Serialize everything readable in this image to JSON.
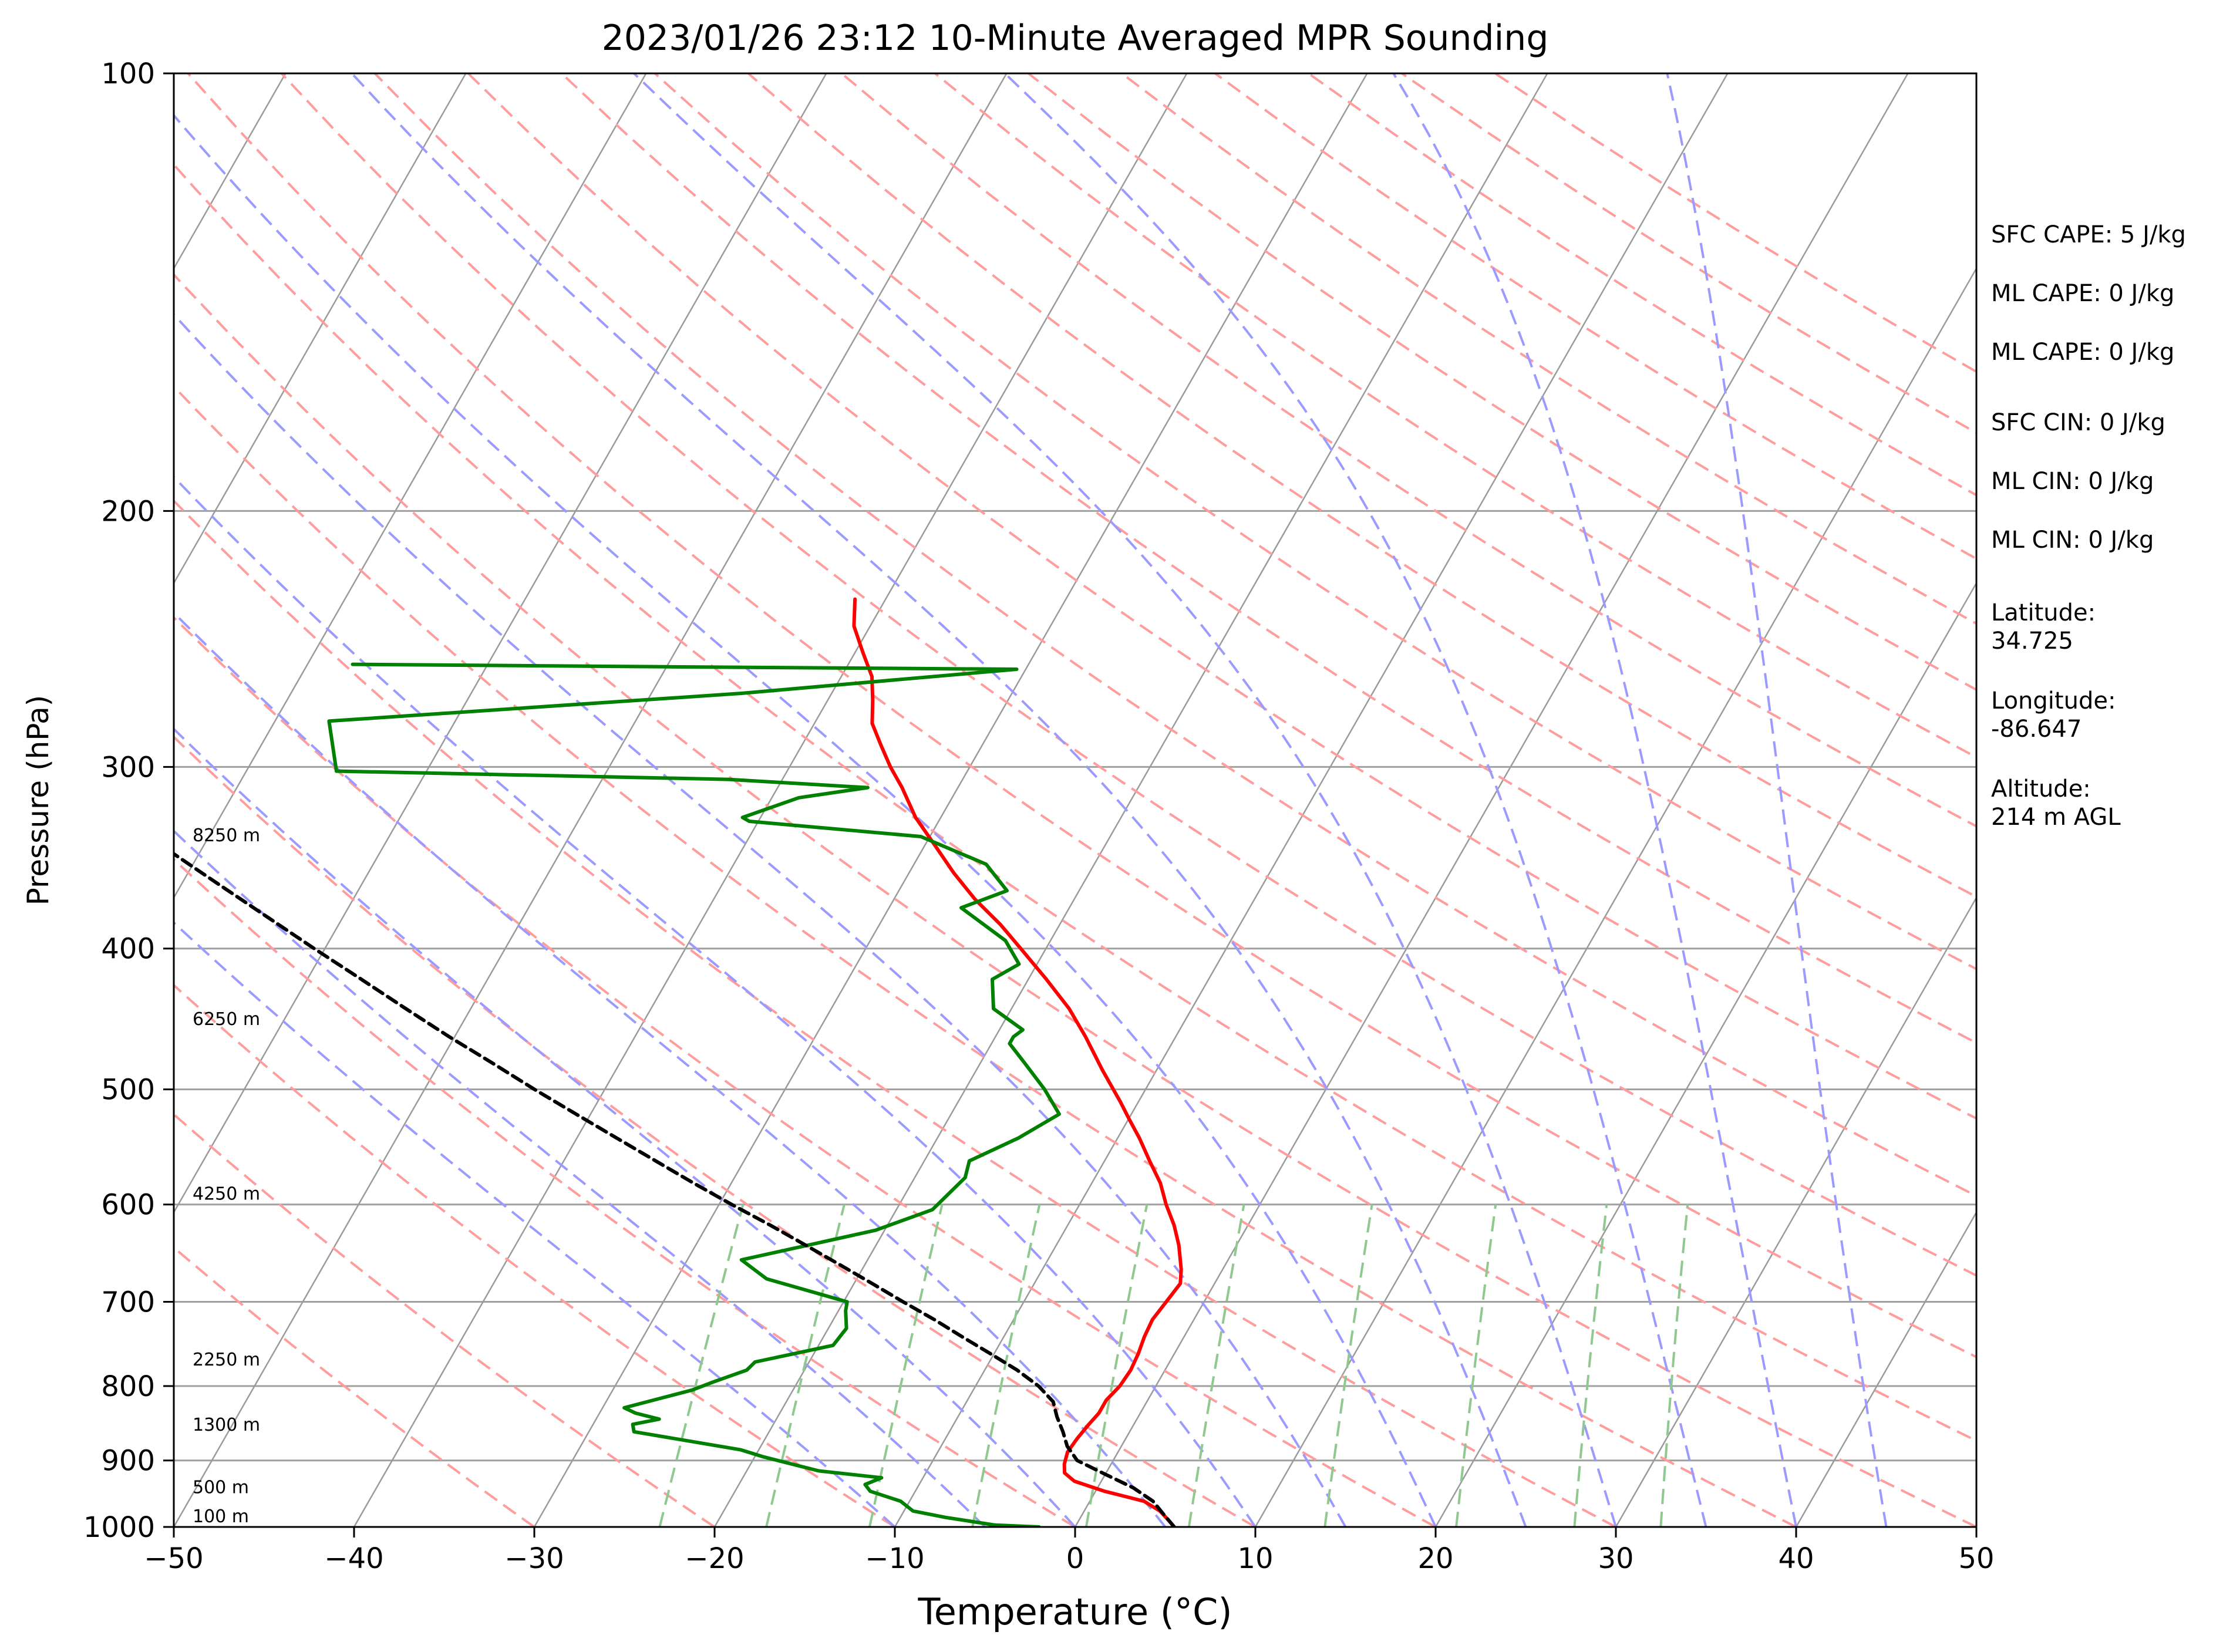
{
  "chart_data": {
    "type": "line",
    "title": "2023/01/26 23:12 10-Minute Averaged MPR Sounding",
    "xlabel": "Temperature (°C)",
    "ylabel": "Pressure (hPa)",
    "xlim": [
      -50,
      50
    ],
    "ylim": [
      1000,
      100
    ],
    "y_scale": "log",
    "skew_t": true,
    "grid": true,
    "x_ticks": [
      "−50",
      "−40",
      "−30",
      "−20",
      "−10",
      "0",
      "10",
      "20",
      "30",
      "40",
      "50"
    ],
    "y_ticks": [
      "100",
      "200",
      "300",
      "400",
      "500",
      "600",
      "700",
      "800",
      "900",
      "1000"
    ],
    "height_labels": [
      {
        "p": 1000,
        "label": "100 m"
      },
      {
        "p": 955,
        "label": "500 m"
      },
      {
        "p": 865,
        "label": "1300 m"
      },
      {
        "p": 780,
        "label": "2250 m"
      },
      {
        "p": 600,
        "label": "4250 m"
      },
      {
        "p": 455,
        "label": "6250 m"
      },
      {
        "p": 340,
        "label": "8250 m"
      }
    ],
    "series": [
      {
        "color": "#ff0000",
        "points": [
          [
            5.5,
            1000
          ],
          [
            5.0,
            990
          ],
          [
            4.2,
            975
          ],
          [
            3.0,
            960
          ],
          [
            0.5,
            945
          ],
          [
            -1.5,
            930
          ],
          [
            -2.3,
            918
          ],
          [
            -2.6,
            905
          ],
          [
            -2.8,
            888
          ],
          [
            -2.7,
            870
          ],
          [
            -2.5,
            850
          ],
          [
            -2.3,
            835
          ],
          [
            -2.3,
            818
          ],
          [
            -2.0,
            800
          ],
          [
            -1.9,
            780
          ],
          [
            -2.0,
            760
          ],
          [
            -2.2,
            740
          ],
          [
            -2.3,
            720
          ],
          [
            -2.1,
            700
          ],
          [
            -1.9,
            680
          ],
          [
            -2.3,
            665
          ],
          [
            -3.2,
            640
          ],
          [
            -4.1,
            620
          ],
          [
            -5.2,
            600
          ],
          [
            -6.2,
            580
          ],
          [
            -7.5,
            560
          ],
          [
            -8.8,
            540
          ],
          [
            -9.9,
            525
          ],
          [
            -11.0,
            510
          ],
          [
            -13.0,
            485
          ],
          [
            -15.0,
            460
          ],
          [
            -16.8,
            440
          ],
          [
            -19.0,
            420
          ],
          [
            -21.4,
            400
          ],
          [
            -23.3,
            385
          ],
          [
            -25.5,
            370
          ],
          [
            -27.5,
            355
          ],
          [
            -29.4,
            340
          ],
          [
            -31.4,
            325
          ],
          [
            -33.1,
            310
          ],
          [
            -34.4,
            300
          ],
          [
            -35.6,
            290
          ],
          [
            -36.8,
            280
          ],
          [
            -37.5,
            270
          ],
          [
            -38.3,
            260
          ],
          [
            -39.6,
            250
          ],
          [
            -40.9,
            240
          ],
          [
            -41.7,
            230
          ]
        ]
      },
      {
        "color": "#008000",
        "points": [
          [
            -2.0,
            1000
          ],
          [
            -4.5,
            997
          ],
          [
            -7.5,
            985
          ],
          [
            -9.5,
            975
          ],
          [
            -10.5,
            960
          ],
          [
            -12.5,
            945
          ],
          [
            -13.0,
            935
          ],
          [
            -12.3,
            925
          ],
          [
            -16.0,
            915
          ],
          [
            -19.5,
            895
          ],
          [
            -21.0,
            885
          ],
          [
            -27.5,
            860
          ],
          [
            -27.8,
            850
          ],
          [
            -26.5,
            843
          ],
          [
            -28.0,
            835
          ],
          [
            -28.8,
            828
          ],
          [
            -27.0,
            815
          ],
          [
            -25.6,
            805
          ],
          [
            -24.7,
            795
          ],
          [
            -23.2,
            780
          ],
          [
            -23.0,
            770
          ],
          [
            -19.2,
            750
          ],
          [
            -19.0,
            730
          ],
          [
            -19.6,
            710
          ],
          [
            -19.8,
            700
          ],
          [
            -25.0,
            675
          ],
          [
            -27.0,
            655
          ],
          [
            -20.5,
            625
          ],
          [
            -18.0,
            605
          ],
          [
            -17.2,
            575
          ],
          [
            -17.5,
            560
          ],
          [
            -15.5,
            540
          ],
          [
            -14.0,
            520
          ],
          [
            -15.6,
            500
          ],
          [
            -17.5,
            480
          ],
          [
            -19.0,
            465
          ],
          [
            -19.0,
            460
          ],
          [
            -18.7,
            455
          ],
          [
            -21.0,
            440
          ],
          [
            -22.0,
            420
          ],
          [
            -21.0,
            410
          ],
          [
            -22.5,
            395
          ],
          [
            -26.0,
            375
          ],
          [
            -24.0,
            365
          ],
          [
            -26.0,
            350
          ],
          [
            -30.5,
            335
          ],
          [
            -40.5,
            327
          ],
          [
            -41.0,
            325
          ],
          [
            -38.5,
            315
          ],
          [
            -35.0,
            310
          ],
          [
            -43.0,
            306
          ],
          [
            -65.0,
            302
          ],
          [
            -67.0,
            279
          ],
          [
            -45.0,
            267
          ],
          [
            -30.5,
            257
          ],
          [
            -50.0,
            256
          ],
          [
            -67.5,
            255
          ]
        ]
      },
      {
        "color": "#000000",
        "dashed": true,
        "points": [
          [
            5.5,
            1000
          ],
          [
            4.5,
            980
          ],
          [
            3.5,
            960
          ],
          [
            2.0,
            940
          ],
          [
            0.0,
            920
          ],
          [
            -2.0,
            900
          ],
          [
            -3.0,
            880
          ],
          [
            -3.7,
            860
          ],
          [
            -4.5,
            840
          ],
          [
            -5.2,
            820
          ],
          [
            -6.5,
            800
          ],
          [
            -8.2,
            780
          ],
          [
            -10.2,
            760
          ],
          [
            -12.3,
            740
          ],
          [
            -14.4,
            720
          ],
          [
            -16.7,
            700
          ],
          [
            -19.0,
            680
          ],
          [
            -21.4,
            660
          ],
          [
            -23.9,
            640
          ],
          [
            -26.5,
            620
          ],
          [
            -29.3,
            600
          ],
          [
            -32.1,
            580
          ],
          [
            -34.9,
            560
          ],
          [
            -37.8,
            540
          ],
          [
            -40.8,
            520
          ],
          [
            -43.9,
            500
          ],
          [
            -47.0,
            480
          ],
          [
            -50.3,
            460
          ],
          [
            -53.6,
            440
          ],
          [
            -57.0,
            420
          ],
          [
            -60.6,
            400
          ],
          [
            -64.3,
            380
          ],
          [
            -68.2,
            360
          ],
          [
            -72.3,
            340
          ],
          [
            -76.6,
            320
          ],
          [
            -81.1,
            300
          ],
          [
            -85.9,
            280
          ],
          [
            -90.8,
            262
          ]
        ]
      }
    ],
    "indices": [
      "SFC CAPE: 5 J/kg",
      "ML CAPE: 0 J/kg",
      "ML CAPE: 0 J/kg",
      "SFC CIN: 0 J/kg",
      "ML CIN: 0 J/kg",
      "ML CIN: 0 J/kg"
    ],
    "location": [
      {
        "label": "Latitude:",
        "value": "34.725"
      },
      {
        "label": "Longitude:",
        "value": "-86.647"
      },
      {
        "label": "Altitude:",
        "value": "214 m AGL"
      }
    ],
    "colors": {
      "isotherm": "#9a9a9a",
      "isobar": "#a0a0a0",
      "dry_adiabat": "#ff9c9c",
      "moist_adiabat": "#9b9bff",
      "mixing_ratio": "#8fc98f",
      "temperature": "#ff0000",
      "dewpoint": "#008000",
      "parcel": "#000000"
    }
  }
}
